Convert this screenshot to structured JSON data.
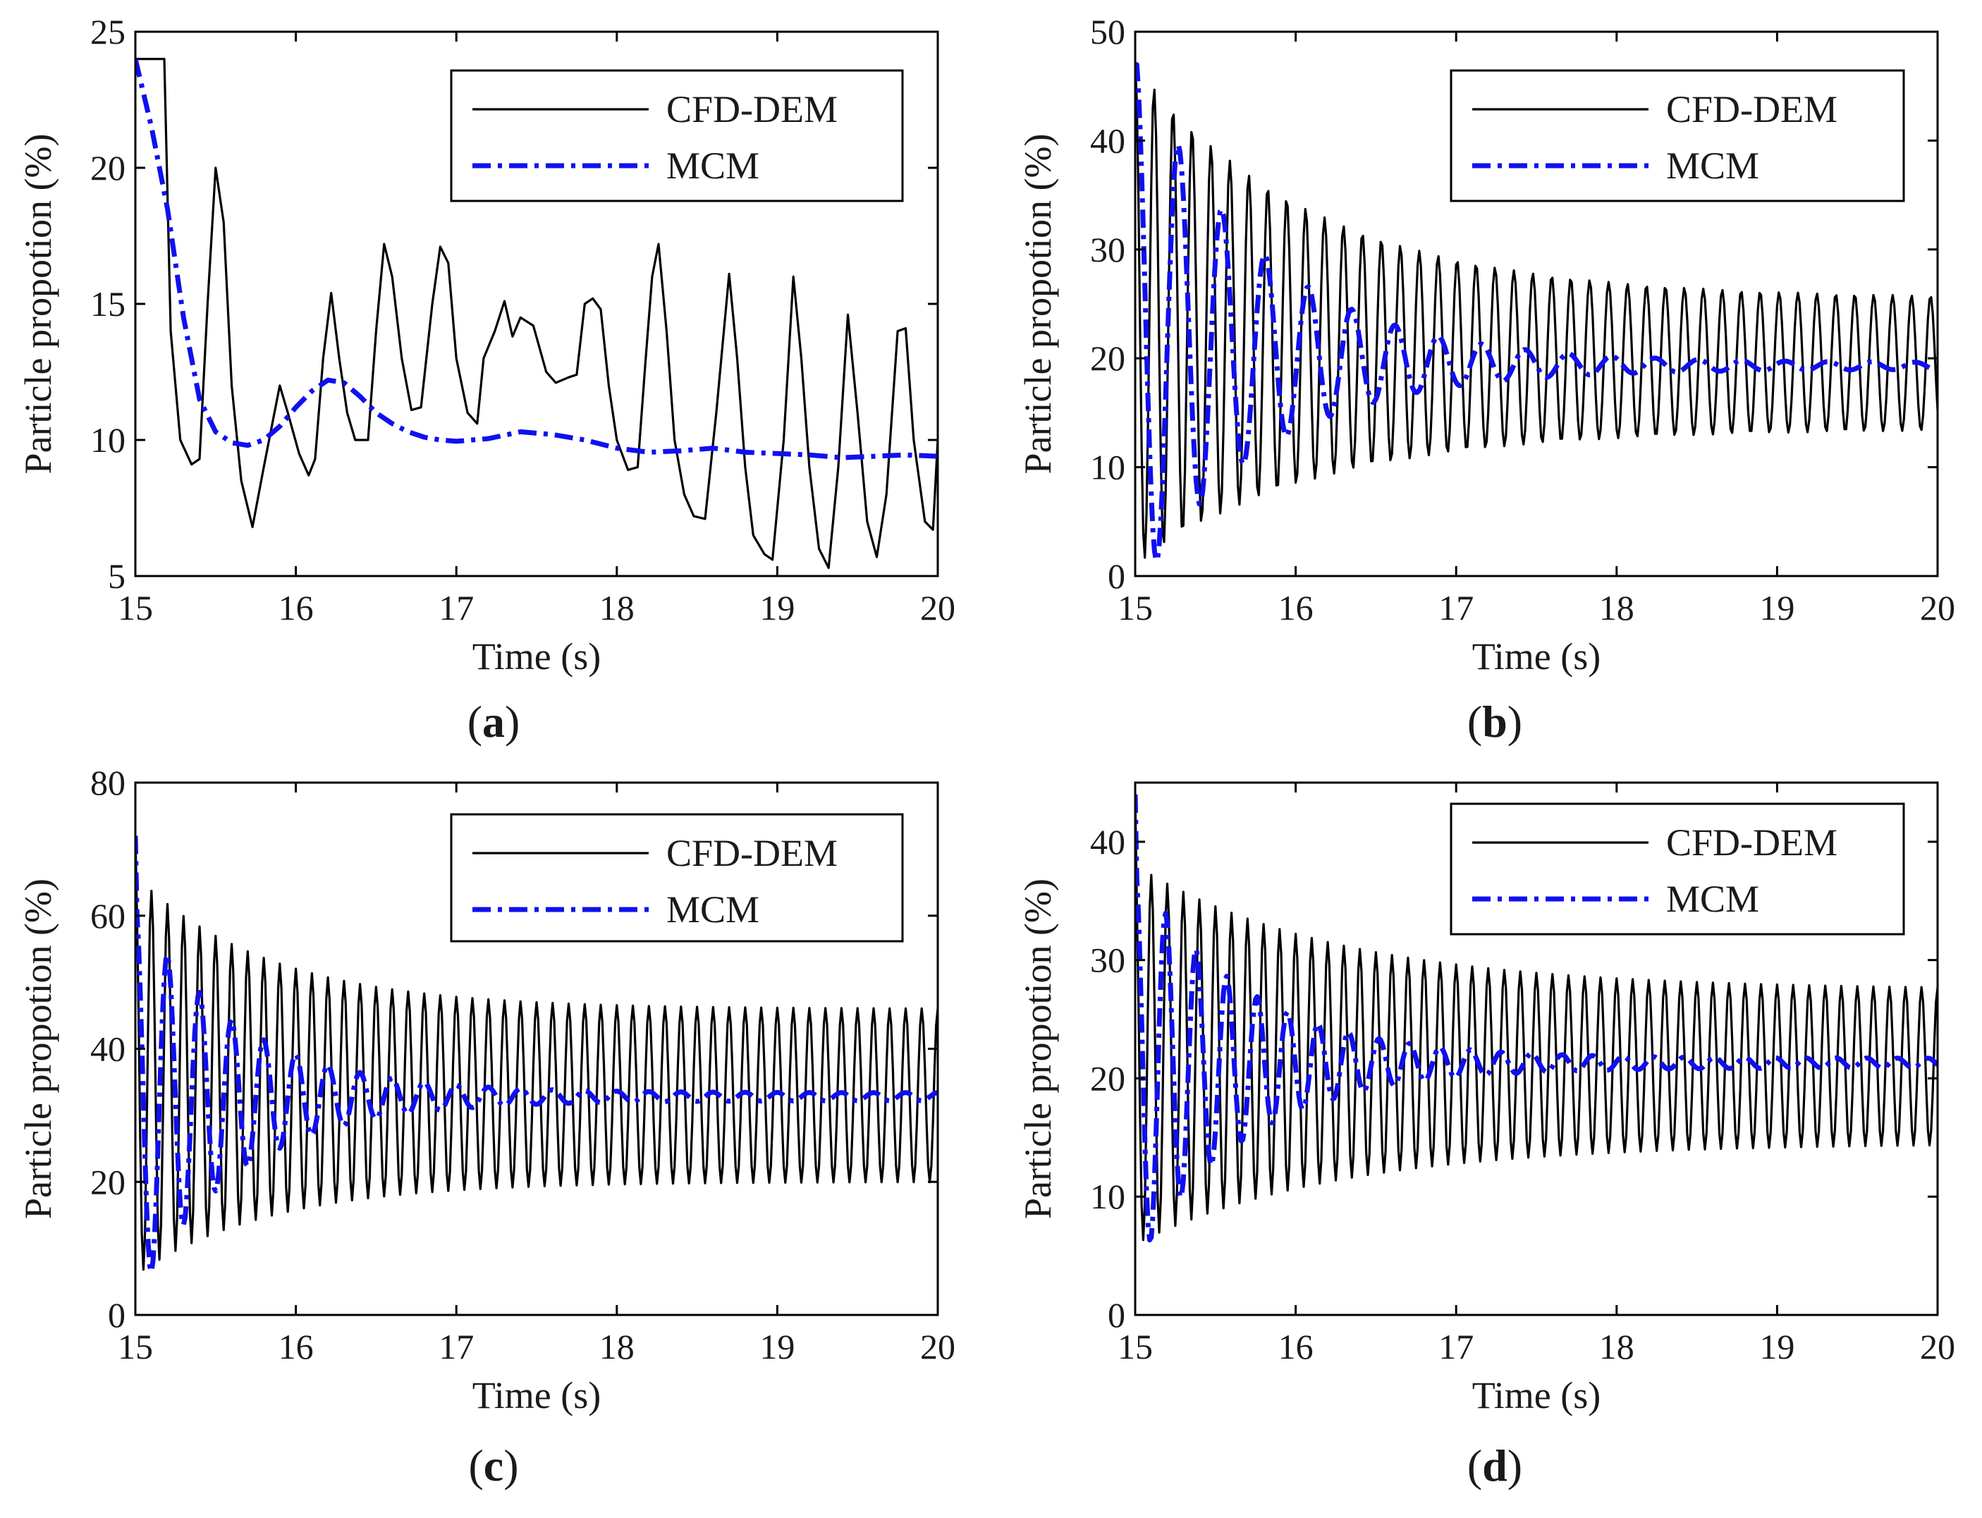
{
  "colors": {
    "cfd": "#000000",
    "mcm": "#1010f0",
    "frame": "#000000"
  },
  "chart_data": [
    {
      "type": "line",
      "panel_label": "(a)",
      "xlabel": "Time (s)",
      "ylabel": "Particle propotion (%)",
      "xlim": [
        15,
        20
      ],
      "ylim": [
        5,
        25
      ],
      "xticks": [
        15,
        16,
        17,
        18,
        19,
        20
      ],
      "yticks": [
        5,
        10,
        15,
        20,
        25
      ],
      "legend_position": "top-right",
      "series": [
        {
          "name": "CFD-DEM",
          "style": "solid",
          "points": [
            [
              15,
              24
            ],
            [
              15.08,
              24
            ],
            [
              15.18,
              24
            ],
            [
              15.22,
              14
            ],
            [
              15.28,
              10
            ],
            [
              15.35,
              9.1
            ],
            [
              15.4,
              9.3
            ],
            [
              15.45,
              15
            ],
            [
              15.5,
              20
            ],
            [
              15.55,
              18
            ],
            [
              15.6,
              12
            ],
            [
              15.66,
              8.5
            ],
            [
              15.73,
              6.8
            ],
            [
              15.8,
              9
            ],
            [
              15.9,
              12
            ],
            [
              15.95,
              11
            ],
            [
              16.02,
              9.5
            ],
            [
              16.08,
              8.7
            ],
            [
              16.12,
              9.3
            ],
            [
              16.17,
              13
            ],
            [
              16.22,
              15.4
            ],
            [
              16.27,
              13
            ],
            [
              16.32,
              11
            ],
            [
              16.37,
              10
            ],
            [
              16.45,
              10
            ],
            [
              16.5,
              14
            ],
            [
              16.55,
              17.2
            ],
            [
              16.6,
              16
            ],
            [
              16.66,
              13
            ],
            [
              16.72,
              11.1
            ],
            [
              16.78,
              11.2
            ],
            [
              16.85,
              15
            ],
            [
              16.9,
              17.1
            ],
            [
              16.95,
              16.5
            ],
            [
              17,
              13
            ],
            [
              17.07,
              11
            ],
            [
              17.13,
              10.6
            ],
            [
              17.17,
              13
            ],
            [
              17.24,
              14
            ],
            [
              17.3,
              15.1
            ],
            [
              17.35,
              13.8
            ],
            [
              17.4,
              14.5
            ],
            [
              17.48,
              14.2
            ],
            [
              17.56,
              12.5
            ],
            [
              17.62,
              12.1
            ],
            [
              17.7,
              12.3
            ],
            [
              17.75,
              12.4
            ],
            [
              17.8,
              15
            ],
            [
              17.85,
              15.2
            ],
            [
              17.9,
              14.8
            ],
            [
              17.95,
              12
            ],
            [
              18,
              10
            ],
            [
              18.07,
              8.9
            ],
            [
              18.13,
              9
            ],
            [
              18.18,
              13
            ],
            [
              18.22,
              16
            ],
            [
              18.26,
              17.2
            ],
            [
              18.31,
              14
            ],
            [
              18.36,
              10
            ],
            [
              18.42,
              8
            ],
            [
              18.48,
              7.2
            ],
            [
              18.55,
              7.1
            ],
            [
              18.62,
              11
            ],
            [
              18.7,
              16.1
            ],
            [
              18.75,
              13
            ],
            [
              18.8,
              9
            ],
            [
              18.85,
              6.5
            ],
            [
              18.92,
              5.8
            ],
            [
              18.97,
              5.6
            ],
            [
              19.04,
              10
            ],
            [
              19.1,
              16
            ],
            [
              19.15,
              13
            ],
            [
              19.2,
              9
            ],
            [
              19.26,
              6
            ],
            [
              19.32,
              5.3
            ],
            [
              19.38,
              9
            ],
            [
              19.44,
              14.6
            ],
            [
              19.5,
              11
            ],
            [
              19.56,
              7
            ],
            [
              19.62,
              5.7
            ],
            [
              19.68,
              8
            ],
            [
              19.75,
              14
            ],
            [
              19.8,
              14.1
            ],
            [
              19.85,
              10
            ],
            [
              19.92,
              7
            ],
            [
              19.97,
              6.7
            ],
            [
              20,
              10
            ],
            [
              20.02,
              13.5
            ]
          ]
        },
        {
          "name": "MCM",
          "style": "dashdot",
          "points": [
            [
              15,
              24
            ],
            [
              15.1,
              21.5
            ],
            [
              15.2,
              18.5
            ],
            [
              15.3,
              14.5
            ],
            [
              15.4,
              11.5
            ],
            [
              15.5,
              10.3
            ],
            [
              15.6,
              9.9
            ],
            [
              15.7,
              9.8
            ],
            [
              15.8,
              10
            ],
            [
              15.9,
              10.5
            ],
            [
              16,
              11.2
            ],
            [
              16.1,
              11.8
            ],
            [
              16.2,
              12.2
            ],
            [
              16.3,
              12.1
            ],
            [
              16.4,
              11.6
            ],
            [
              16.5,
              11
            ],
            [
              16.6,
              10.6
            ],
            [
              16.7,
              10.3
            ],
            [
              16.8,
              10.1
            ],
            [
              16.9,
              10
            ],
            [
              17,
              9.95
            ],
            [
              17.2,
              10.05
            ],
            [
              17.4,
              10.3
            ],
            [
              17.6,
              10.2
            ],
            [
              17.8,
              10
            ],
            [
              18,
              9.7
            ],
            [
              18.2,
              9.55
            ],
            [
              18.4,
              9.6
            ],
            [
              18.6,
              9.7
            ],
            [
              18.8,
              9.55
            ],
            [
              19,
              9.5
            ],
            [
              19.2,
              9.45
            ],
            [
              19.4,
              9.35
            ],
            [
              19.6,
              9.4
            ],
            [
              19.8,
              9.45
            ],
            [
              20,
              9.4
            ]
          ]
        }
      ]
    },
    {
      "type": "line",
      "panel_label": "(b)",
      "xlabel": "Time (s)",
      "ylabel": "Particle propotion (%)",
      "xlim": [
        15,
        20
      ],
      "ylim": [
        0,
        50
      ],
      "xticks": [
        15,
        16,
        17,
        18,
        19,
        20
      ],
      "yticks": [
        0,
        10,
        20,
        30,
        40,
        50
      ],
      "legend_position": "top-right",
      "series": [
        {
          "name": "CFD-DEM",
          "style": "solid",
          "envelope": {
            "start": 47,
            "center_start": 24,
            "center_end": 19.5,
            "amp_start": 23,
            "amp_end": 6,
            "decay": 0.9,
            "period": 0.118,
            "phase": 0.0,
            "t_end": 20
          }
        },
        {
          "name": "MCM",
          "style": "dashdot",
          "envelope": {
            "start": 47,
            "center_start": 23,
            "center_end": 19.3,
            "amp_start": 25,
            "amp_end": 0.3,
            "decay": 1.3,
            "period": 0.27,
            "phase": 0.0,
            "t_end": 20
          }
        }
      ]
    },
    {
      "type": "line",
      "panel_label": "(c)",
      "xlabel": "Time (s)",
      "ylabel": "Particle propotion (%)",
      "xlim": [
        15,
        20
      ],
      "ylim": [
        0,
        80
      ],
      "xticks": [
        15,
        16,
        17,
        18,
        19,
        20
      ],
      "yticks": [
        0,
        20,
        40,
        60,
        80
      ],
      "legend_position": "top-right",
      "series": [
        {
          "name": "CFD-DEM",
          "style": "solid",
          "envelope": {
            "start": 72,
            "center_start": 36,
            "center_end": 33,
            "amp_start": 30,
            "amp_end": 13,
            "decay": 1.2,
            "period": 0.1,
            "phase": 0.0,
            "t_end": 20
          }
        },
        {
          "name": "MCM",
          "style": "dashdot",
          "envelope": {
            "start": 72,
            "center_start": 32,
            "center_end": 32.8,
            "amp_start": 30,
            "amp_end": 0.6,
            "decay": 1.6,
            "period": 0.2,
            "phase": 0.0,
            "t_end": 20
          }
        }
      ]
    },
    {
      "type": "line",
      "panel_label": "(d)",
      "xlabel": "Time (s)",
      "ylabel": "Particle propotion (%)",
      "xlim": [
        15,
        20
      ],
      "ylim": [
        0,
        45
      ],
      "xticks": [
        15,
        16,
        17,
        18,
        19,
        20
      ],
      "yticks": [
        0,
        10,
        20,
        30,
        40
      ],
      "legend_position": "top-right",
      "series": [
        {
          "name": "CFD-DEM",
          "style": "solid",
          "envelope": {
            "start": 44,
            "center_start": 22,
            "center_end": 21,
            "amp_start": 16,
            "amp_end": 6.5,
            "decay": 0.8,
            "period": 0.1,
            "phase": 0.0,
            "t_end": 20
          }
        },
        {
          "name": "MCM",
          "style": "dashdot",
          "envelope": {
            "start": 44,
            "center_start": 21,
            "center_end": 21.3,
            "amp_start": 17,
            "amp_end": 0.4,
            "decay": 1.5,
            "period": 0.19,
            "phase": 0.0,
            "t_end": 20
          }
        }
      ]
    }
  ]
}
